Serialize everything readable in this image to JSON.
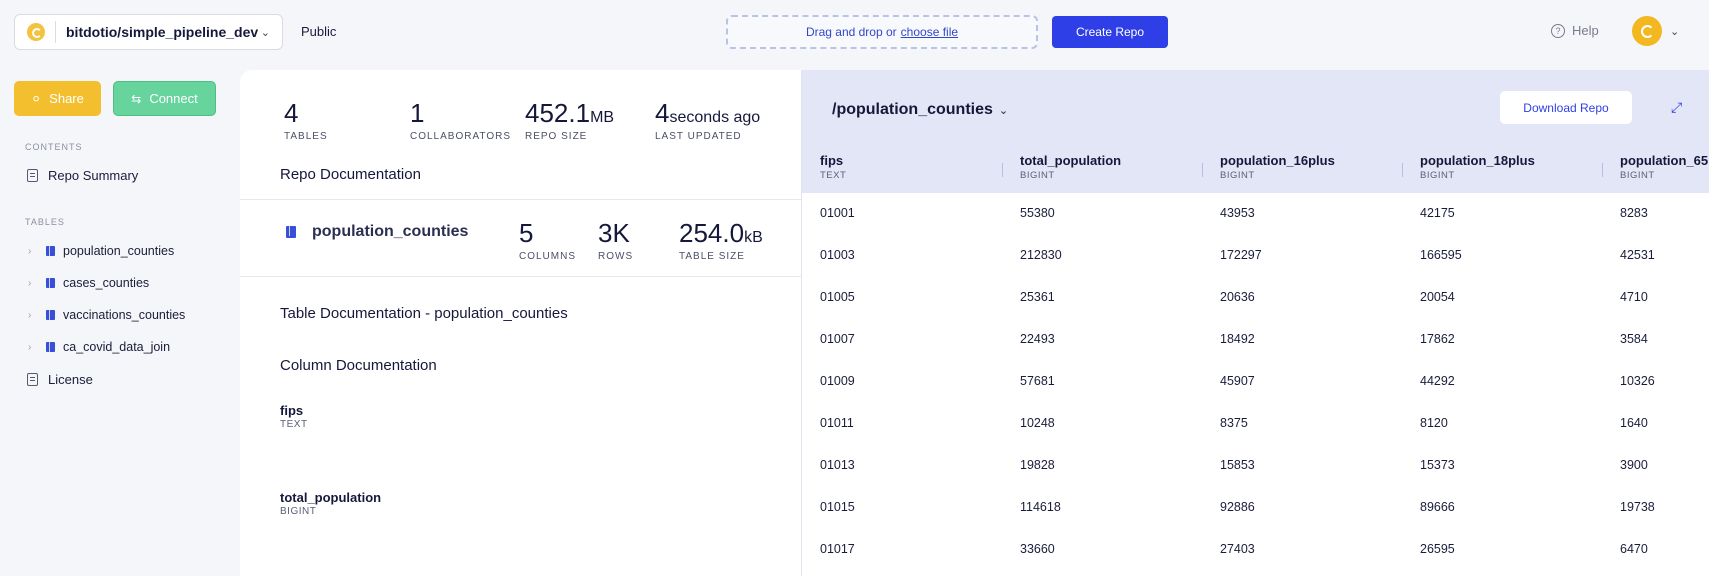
{
  "header": {
    "repo_name": "bitdotio/simple_pipeline_dev",
    "visibility": "Public",
    "dropzone_text": "Drag and drop or",
    "dropzone_link": "choose file",
    "create_repo": "Create Repo",
    "help": "Help"
  },
  "sidebar": {
    "share": "Share",
    "connect": "Connect",
    "contents_heading": "CONTENTS",
    "repo_summary": "Repo Summary",
    "tables_heading": "TABLES",
    "tables": [
      "population_counties",
      "cases_counties",
      "vaccinations_counties",
      "ca_covid_data_join"
    ],
    "license": "License"
  },
  "repo_stats": {
    "tables_value": "4",
    "tables_label": "TABLES",
    "collaborators_value": "1",
    "collaborators_label": "COLLABORATORS",
    "size_value": "452.1",
    "size_unit": "MB",
    "size_label": "REPO SIZE",
    "updated_value": "4",
    "updated_unit": "seconds ago",
    "updated_label": "LAST UPDATED"
  },
  "repo_doc_title": "Repo Documentation",
  "table_info": {
    "name": "population_counties",
    "columns_value": "5",
    "columns_label": "COLUMNS",
    "rows_value": "3K",
    "rows_label": "ROWS",
    "size_value": "254.0",
    "size_unit": "kB",
    "size_label": "TABLE SIZE"
  },
  "table_doc_title": "Table Documentation - population_counties",
  "column_doc_title": "Column Documentation",
  "column_docs": [
    {
      "name": "fips",
      "type": "TEXT"
    },
    {
      "name": "total_population",
      "type": "BIGINT"
    }
  ],
  "preview": {
    "path": "/population_counties",
    "download": "Download Repo",
    "columns": [
      {
        "name": "fips",
        "type": "TEXT"
      },
      {
        "name": "total_population",
        "type": "BIGINT"
      },
      {
        "name": "population_16plus",
        "type": "BIGINT"
      },
      {
        "name": "population_18plus",
        "type": "BIGINT"
      },
      {
        "name": "population_65",
        "type": "BIGINT"
      }
    ],
    "rows": [
      [
        "01001",
        "55380",
        "43953",
        "42175",
        "8283"
      ],
      [
        "01003",
        "212830",
        "172297",
        "166595",
        "42531"
      ],
      [
        "01005",
        "25361",
        "20636",
        "20054",
        "4710"
      ],
      [
        "01007",
        "22493",
        "18492",
        "17862",
        "3584"
      ],
      [
        "01009",
        "57681",
        "45907",
        "44292",
        "10326"
      ],
      [
        "01011",
        "10248",
        "8375",
        "8120",
        "1640"
      ],
      [
        "01013",
        "19828",
        "15853",
        "15373",
        "3900"
      ],
      [
        "01015",
        "114618",
        "92886",
        "89666",
        "19738"
      ],
      [
        "01017",
        "33660",
        "27403",
        "26595",
        "6470"
      ]
    ]
  }
}
